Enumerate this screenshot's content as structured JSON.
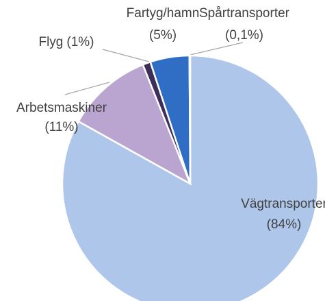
{
  "chart_data": {
    "type": "pie",
    "categories": [
      "Vägtransporter",
      "Arbetsmaskiner",
      "Flyg",
      "Fartyg/hamn",
      "Spårtransporter"
    ],
    "values": [
      84,
      11,
      1,
      5,
      0.1
    ],
    "value_labels": [
      "(84%)",
      "(11%)",
      "(1%)",
      "(5%)",
      "(0,1%)"
    ],
    "colors": [
      "#aec6ea",
      "#b9a5d0",
      "#3d2f5a",
      "#2f6ec4",
      "#1f4e8f"
    ]
  }
}
